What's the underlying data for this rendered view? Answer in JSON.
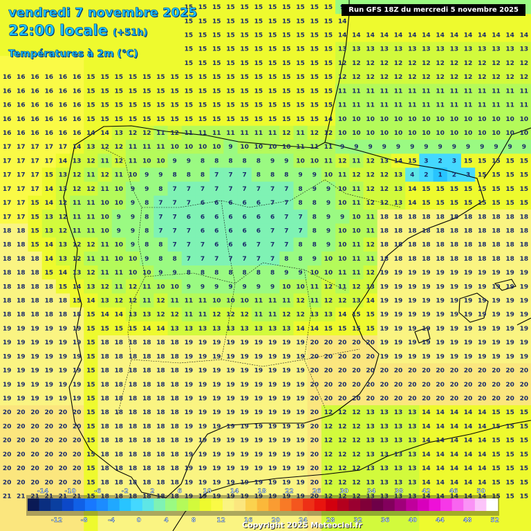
{
  "header": {
    "date": "vendredi 7 novembre 2025",
    "hour_local": "22:00 locale",
    "lead_time": "(+51h)",
    "parameter": "Températures à 2m (°C)"
  },
  "run_info": "Run GFS 18Z du mercredi 5 novembre 2025",
  "copyright": "Copyright 2025 Meteociel.fr",
  "map_region": "Iberian Peninsula",
  "colorbar": {
    "colors": [
      "#0a1a55",
      "#0a2e80",
      "#0a3fa0",
      "#0c48c8",
      "#1060e6",
      "#1878ff",
      "#1c8cff",
      "#20a8ff",
      "#28c4ff",
      "#44d8ff",
      "#5ee6e6",
      "#7ff2b4",
      "#9afa82",
      "#b4fa5a",
      "#d2fa3c",
      "#eefa2e",
      "#fafa46",
      "#faf482",
      "#fbe67e",
      "#fbd24e",
      "#fbb83a",
      "#fa9c32",
      "#f87a26",
      "#f4561e",
      "#ee3016",
      "#e8140e",
      "#d2000e",
      "#b4001e",
      "#9a0030",
      "#800038",
      "#6e0048",
      "#82005c",
      "#a0007a",
      "#c0009c",
      "#d800bc",
      "#ee10d8",
      "#f638e8",
      "#f864f0",
      "#fa92f6",
      "#fcc4fa",
      "#ffffff"
    ],
    "top_ticks": [
      "-14",
      "-10",
      "-6",
      "-2",
      "2",
      "6",
      "10",
      "14",
      "18",
      "22",
      "26",
      "30",
      "34",
      "38",
      "42",
      "46",
      "50"
    ],
    "bottom_ticks": [
      "-12",
      "-8",
      "-4",
      "0",
      "4",
      "8",
      "12",
      "16",
      "20",
      "24",
      "28",
      "32",
      "36",
      "40",
      "44",
      "48",
      "52"
    ]
  },
  "temperature_grid": {
    "cols": 38,
    "rows": 38,
    "source": "visible 2m temperature values per grid cell"
  }
}
